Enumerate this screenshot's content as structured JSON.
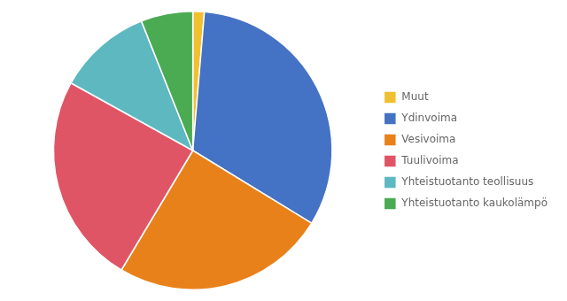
{
  "chart_data": {
    "type": "pie",
    "categories": [
      "Muut",
      "Ydinvoima",
      "Vesivoima",
      "Tuulivoima",
      "Yhteistuotanto teollisuus",
      "Yhteistuotanto kaukolämpö"
    ],
    "values": [
      114,
      2780,
      2129,
      2100,
      937,
      516
    ],
    "colors": [
      "#f0c030",
      "#4472c4",
      "#e8811a",
      "#e05565",
      "#5db8c0",
      "#4aab52"
    ],
    "legend": "right",
    "data_labels": false
  }
}
